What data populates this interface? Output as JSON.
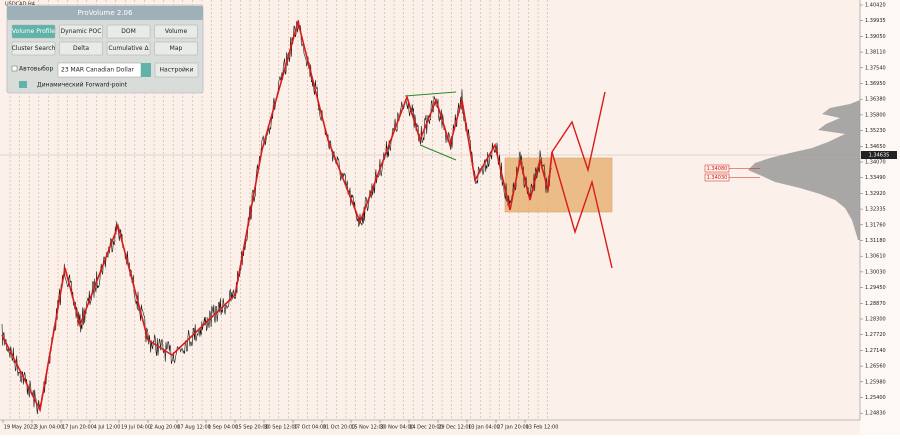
{
  "window": {
    "symbol": "USDCAD,H4"
  },
  "panel": {
    "title": "ProVolume 2.06",
    "buttons": [
      "Volume Profile",
      "Dynamic POC",
      "DOM",
      "Volume",
      "Cluster Search",
      "Delta",
      "Cumulative Δ",
      "Map"
    ],
    "auto_select": "Автовыбор",
    "instrument": "23 MAR Canadian Dollar",
    "settings": "Настройки",
    "forward_point": "Динамический Forward-point"
  },
  "price_axis": [
    "1.40420",
    "1.39935",
    "1.39050",
    "1.38110",
    "1.37540",
    "1.36950",
    "1.36380",
    "1.35800",
    "1.35230",
    "1.34650",
    "1.34070",
    "1.33490",
    "1.32920",
    "1.32335",
    "1.31760",
    "1.31180",
    "1.30610",
    "1.30030",
    "1.29450",
    "1.28870",
    "1.28300",
    "1.27720",
    "1.27140",
    "1.26560",
    "1.25980",
    "1.25400",
    "1.24830"
  ],
  "current_price": "1.34635",
  "level_labels": [
    "1.34080",
    "1.34030"
  ],
  "time_axis": [
    "19 May 2022",
    "3 Jun 04:00",
    "17 Jun 20:00",
    "4 Jul 12:00",
    "19 Jul 04:00",
    "2 Aug 20:00",
    "17 Aug 12:00",
    "1 Sep 04:00",
    "15 Sep 20:00",
    "30 Sep 12:00",
    "17 Oct 04:00",
    "31 Oct 20:00",
    "15 Nov 12:00",
    "30 Nov 04:00",
    "14 Dec 20:00",
    "29 Dec 12:00",
    "13 Jan 04:00",
    "27 Jan 20:00",
    "13 Feb 12:00"
  ]
}
